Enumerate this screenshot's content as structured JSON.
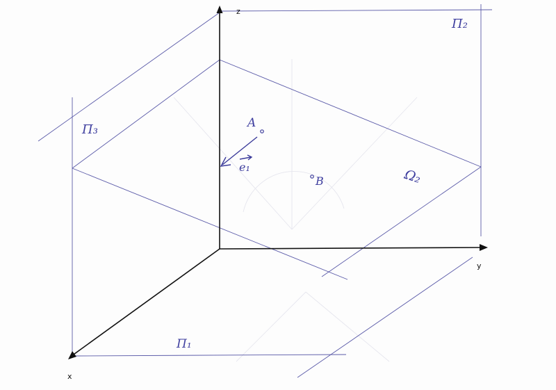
{
  "axes": {
    "x": "x",
    "y": "y",
    "z": "z"
  },
  "planes": {
    "pi1": "Π₁",
    "pi2": "Π₂",
    "pi3": "Π₃",
    "omega2": "Ω₂"
  },
  "points": {
    "a": "A",
    "b": "B"
  },
  "vector": {
    "e1": "e₁"
  },
  "colors": {
    "ink": "#3a3a9a",
    "axis": "#111111",
    "paper": "#fdfdfd"
  }
}
